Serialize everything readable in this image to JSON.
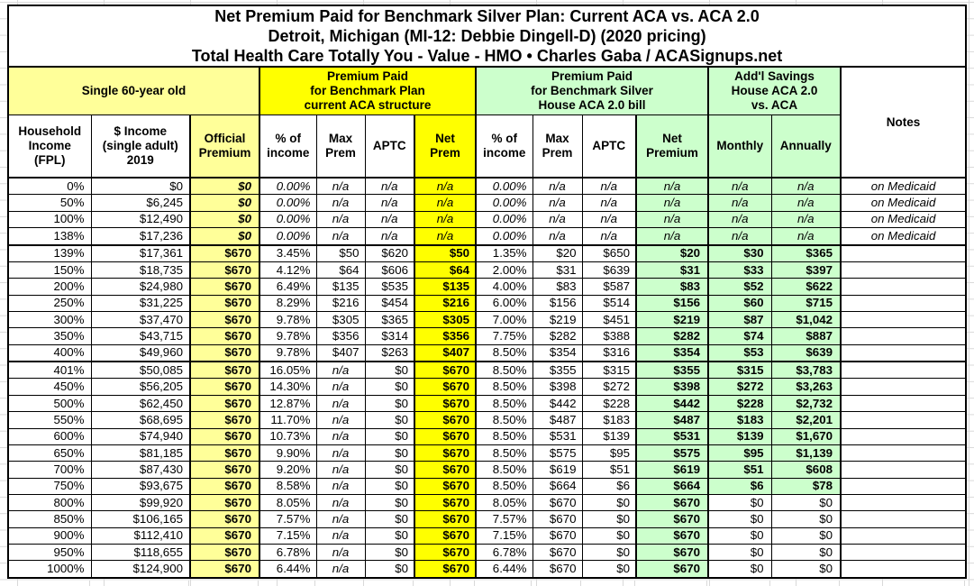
{
  "title": {
    "line1": "Net Premium Paid for Benchmark Silver Plan: Current ACA vs. ACA 2.0",
    "line2": "Detroit, Michigan (MI-12: Debbie Dingell-D) (2020 pricing)",
    "line3": "Total Health Care Totally You - Value - HMO • Charles Gaba / ACASignups.net"
  },
  "groups": {
    "single": "Single 60-year old",
    "current_aca": "Premium Paid\nfor Benchmark Plan\ncurrent ACA structure",
    "aca_20": "Premium Paid\nfor Benchmark Silver\nHouse ACA 2.0 bill",
    "savings": "Add'l Savings\nHouse ACA 2.0\nvs. ACA",
    "notes": "Notes"
  },
  "columns": [
    "Household\nIncome\n(FPL)",
    "$ Income\n(single adult)\n2019",
    "Official\nPremium",
    "% of\nincome",
    "Max\nPrem",
    "APTC",
    "Net\nPrem",
    "% of\nincome",
    "Max\nPrem",
    "APTC",
    "Net\nPremium",
    "Monthly",
    "Annually"
  ],
  "colors": {
    "light_yellow": "#FFFF99",
    "bright_yellow": "#FFFF00",
    "light_green": "#CCFFCC",
    "border": "#000000",
    "gridline": "#D9D9D9"
  },
  "rows": [
    {
      "fpl": "0%",
      "income": "$0",
      "official": "$0",
      "aca_pct": "0.00%",
      "aca_max": "n/a",
      "aca_aptc": "n/a",
      "aca_net": "n/a",
      "aca2_pct": "0.00%",
      "aca2_max": "n/a",
      "aca2_aptc": "n/a",
      "aca2_net": "n/a",
      "monthly": "n/a",
      "annually": "n/a",
      "note": "on Medicaid",
      "medicaid": true
    },
    {
      "fpl": "50%",
      "income": "$6,245",
      "official": "$0",
      "aca_pct": "0.00%",
      "aca_max": "n/a",
      "aca_aptc": "n/a",
      "aca_net": "n/a",
      "aca2_pct": "0.00%",
      "aca2_max": "n/a",
      "aca2_aptc": "n/a",
      "aca2_net": "n/a",
      "monthly": "n/a",
      "annually": "n/a",
      "note": "on Medicaid",
      "medicaid": true
    },
    {
      "fpl": "100%",
      "income": "$12,490",
      "official": "$0",
      "aca_pct": "0.00%",
      "aca_max": "n/a",
      "aca_aptc": "n/a",
      "aca_net": "n/a",
      "aca2_pct": "0.00%",
      "aca2_max": "n/a",
      "aca2_aptc": "n/a",
      "aca2_net": "n/a",
      "monthly": "n/a",
      "annually": "n/a",
      "note": "on Medicaid",
      "medicaid": true
    },
    {
      "fpl": "138%",
      "income": "$17,236",
      "official": "$0",
      "aca_pct": "0.00%",
      "aca_max": "n/a",
      "aca_aptc": "n/a",
      "aca_net": "n/a",
      "aca2_pct": "0.00%",
      "aca2_max": "n/a",
      "aca2_aptc": "n/a",
      "aca2_net": "n/a",
      "monthly": "n/a",
      "annually": "n/a",
      "note": "on Medicaid",
      "medicaid": true,
      "group_end": true
    },
    {
      "fpl": "139%",
      "income": "$17,361",
      "official": "$670",
      "aca_pct": "3.45%",
      "aca_max": "$50",
      "aca_aptc": "$620",
      "aca_net": "$50",
      "aca2_pct": "1.35%",
      "aca2_max": "$20",
      "aca2_aptc": "$650",
      "aca2_net": "$20",
      "monthly": "$30",
      "annually": "$365",
      "note": ""
    },
    {
      "fpl": "150%",
      "income": "$18,735",
      "official": "$670",
      "aca_pct": "4.12%",
      "aca_max": "$64",
      "aca_aptc": "$606",
      "aca_net": "$64",
      "aca2_pct": "2.00%",
      "aca2_max": "$31",
      "aca2_aptc": "$639",
      "aca2_net": "$31",
      "monthly": "$33",
      "annually": "$397",
      "note": ""
    },
    {
      "fpl": "200%",
      "income": "$24,980",
      "official": "$670",
      "aca_pct": "6.49%",
      "aca_max": "$135",
      "aca_aptc": "$535",
      "aca_net": "$135",
      "aca2_pct": "4.00%",
      "aca2_max": "$83",
      "aca2_aptc": "$587",
      "aca2_net": "$83",
      "monthly": "$52",
      "annually": "$622",
      "note": ""
    },
    {
      "fpl": "250%",
      "income": "$31,225",
      "official": "$670",
      "aca_pct": "8.29%",
      "aca_max": "$216",
      "aca_aptc": "$454",
      "aca_net": "$216",
      "aca2_pct": "6.00%",
      "aca2_max": "$156",
      "aca2_aptc": "$514",
      "aca2_net": "$156",
      "monthly": "$60",
      "annually": "$715",
      "note": ""
    },
    {
      "fpl": "300%",
      "income": "$37,470",
      "official": "$670",
      "aca_pct": "9.78%",
      "aca_max": "$305",
      "aca_aptc": "$365",
      "aca_net": "$305",
      "aca2_pct": "7.00%",
      "aca2_max": "$219",
      "aca2_aptc": "$451",
      "aca2_net": "$219",
      "monthly": "$87",
      "annually": "$1,042",
      "note": ""
    },
    {
      "fpl": "350%",
      "income": "$43,715",
      "official": "$670",
      "aca_pct": "9.78%",
      "aca_max": "$356",
      "aca_aptc": "$314",
      "aca_net": "$356",
      "aca2_pct": "7.75%",
      "aca2_max": "$282",
      "aca2_aptc": "$388",
      "aca2_net": "$282",
      "monthly": "$74",
      "annually": "$887",
      "note": ""
    },
    {
      "fpl": "400%",
      "income": "$49,960",
      "official": "$670",
      "aca_pct": "9.78%",
      "aca_max": "$407",
      "aca_aptc": "$263",
      "aca_net": "$407",
      "aca2_pct": "8.50%",
      "aca2_max": "$354",
      "aca2_aptc": "$316",
      "aca2_net": "$354",
      "monthly": "$53",
      "annually": "$639",
      "note": "",
      "group_end": true
    },
    {
      "fpl": "401%",
      "income": "$50,085",
      "official": "$670",
      "aca_pct": "16.05%",
      "aca_max": "n/a",
      "aca_aptc": "$0",
      "aca_net": "$670",
      "aca2_pct": "8.50%",
      "aca2_max": "$355",
      "aca2_aptc": "$315",
      "aca2_net": "$355",
      "monthly": "$315",
      "annually": "$3,783",
      "note": ""
    },
    {
      "fpl": "450%",
      "income": "$56,205",
      "official": "$670",
      "aca_pct": "14.30%",
      "aca_max": "n/a",
      "aca_aptc": "$0",
      "aca_net": "$670",
      "aca2_pct": "8.50%",
      "aca2_max": "$398",
      "aca2_aptc": "$272",
      "aca2_net": "$398",
      "monthly": "$272",
      "annually": "$3,263",
      "note": ""
    },
    {
      "fpl": "500%",
      "income": "$62,450",
      "official": "$670",
      "aca_pct": "12.87%",
      "aca_max": "n/a",
      "aca_aptc": "$0",
      "aca_net": "$670",
      "aca2_pct": "8.50%",
      "aca2_max": "$442",
      "aca2_aptc": "$228",
      "aca2_net": "$442",
      "monthly": "$228",
      "annually": "$2,732",
      "note": ""
    },
    {
      "fpl": "550%",
      "income": "$68,695",
      "official": "$670",
      "aca_pct": "11.70%",
      "aca_max": "n/a",
      "aca_aptc": "$0",
      "aca_net": "$670",
      "aca2_pct": "8.50%",
      "aca2_max": "$487",
      "aca2_aptc": "$183",
      "aca2_net": "$487",
      "monthly": "$183",
      "annually": "$2,201",
      "note": ""
    },
    {
      "fpl": "600%",
      "income": "$74,940",
      "official": "$670",
      "aca_pct": "10.73%",
      "aca_max": "n/a",
      "aca_aptc": "$0",
      "aca_net": "$670",
      "aca2_pct": "8.50%",
      "aca2_max": "$531",
      "aca2_aptc": "$139",
      "aca2_net": "$531",
      "monthly": "$139",
      "annually": "$1,670",
      "note": ""
    },
    {
      "fpl": "650%",
      "income": "$81,185",
      "official": "$670",
      "aca_pct": "9.90%",
      "aca_max": "n/a",
      "aca_aptc": "$0",
      "aca_net": "$670",
      "aca2_pct": "8.50%",
      "aca2_max": "$575",
      "aca2_aptc": "$95",
      "aca2_net": "$575",
      "monthly": "$95",
      "annually": "$1,139",
      "note": ""
    },
    {
      "fpl": "700%",
      "income": "$87,430",
      "official": "$670",
      "aca_pct": "9.20%",
      "aca_max": "n/a",
      "aca_aptc": "$0",
      "aca_net": "$670",
      "aca2_pct": "8.50%",
      "aca2_max": "$619",
      "aca2_aptc": "$51",
      "aca2_net": "$619",
      "monthly": "$51",
      "annually": "$608",
      "note": ""
    },
    {
      "fpl": "750%",
      "income": "$93,675",
      "official": "$670",
      "aca_pct": "8.58%",
      "aca_max": "n/a",
      "aca_aptc": "$0",
      "aca_net": "$670",
      "aca2_pct": "8.50%",
      "aca2_max": "$664",
      "aca2_aptc": "$6",
      "aca2_net": "$664",
      "monthly": "$6",
      "annually": "$78",
      "note": ""
    },
    {
      "fpl": "800%",
      "income": "$99,920",
      "official": "$670",
      "aca_pct": "8.05%",
      "aca_max": "n/a",
      "aca_aptc": "$0",
      "aca_net": "$670",
      "aca2_pct": "8.05%",
      "aca2_max": "$670",
      "aca2_aptc": "$0",
      "aca2_net": "$670",
      "monthly": "$0",
      "annually": "$0",
      "note": "",
      "plain_save": true
    },
    {
      "fpl": "850%",
      "income": "$106,165",
      "official": "$670",
      "aca_pct": "7.57%",
      "aca_max": "n/a",
      "aca_aptc": "$0",
      "aca_net": "$670",
      "aca2_pct": "7.57%",
      "aca2_max": "$670",
      "aca2_aptc": "$0",
      "aca2_net": "$670",
      "monthly": "$0",
      "annually": "$0",
      "note": "",
      "plain_save": true
    },
    {
      "fpl": "900%",
      "income": "$112,410",
      "official": "$670",
      "aca_pct": "7.15%",
      "aca_max": "n/a",
      "aca_aptc": "$0",
      "aca_net": "$670",
      "aca2_pct": "7.15%",
      "aca2_max": "$670",
      "aca2_aptc": "$0",
      "aca2_net": "$670",
      "monthly": "$0",
      "annually": "$0",
      "note": "",
      "plain_save": true
    },
    {
      "fpl": "950%",
      "income": "$118,655",
      "official": "$670",
      "aca_pct": "6.78%",
      "aca_max": "n/a",
      "aca_aptc": "$0",
      "aca_net": "$670",
      "aca2_pct": "6.78%",
      "aca2_max": "$670",
      "aca2_aptc": "$0",
      "aca2_net": "$670",
      "monthly": "$0",
      "annually": "$0",
      "note": "",
      "plain_save": true
    },
    {
      "fpl": "1000%",
      "income": "$124,900",
      "official": "$670",
      "aca_pct": "6.44%",
      "aca_max": "n/a",
      "aca_aptc": "$0",
      "aca_net": "$670",
      "aca2_pct": "6.44%",
      "aca2_max": "$670",
      "aca2_aptc": "$0",
      "aca2_net": "$670",
      "monthly": "$0",
      "annually": "$0",
      "note": "",
      "plain_save": true
    }
  ]
}
